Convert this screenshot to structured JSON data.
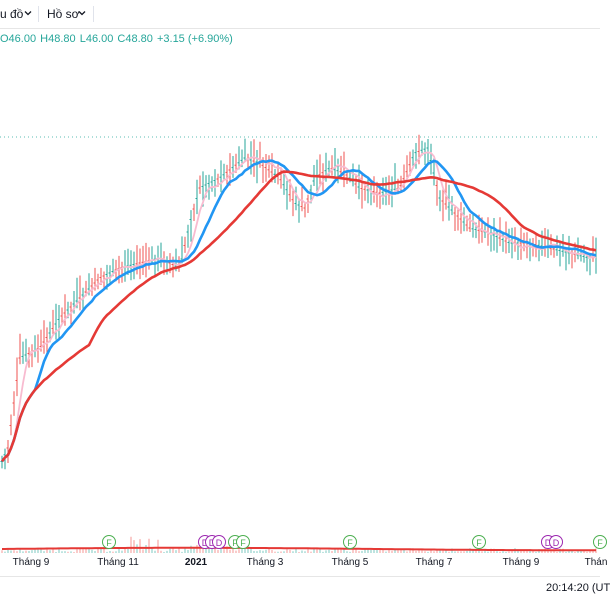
{
  "toolbar": {
    "chart_menu_label": "u đồ",
    "profile_menu_label": "Hồ sơ"
  },
  "ohlc": {
    "open": "O46.00",
    "high": "H48.80",
    "low": "L46.00",
    "close": "C48.80",
    "change": "+3.15 (+6.90%)"
  },
  "x_axis": {
    "labels": [
      {
        "text": "Tháng 9",
        "bold": false
      },
      {
        "text": "Tháng 11",
        "bold": false
      },
      {
        "text": "2021",
        "bold": true
      },
      {
        "text": "Tháng 3",
        "bold": false
      },
      {
        "text": "Tháng 5",
        "bold": false
      },
      {
        "text": "Tháng 7",
        "bold": false
      },
      {
        "text": "Tháng 9",
        "bold": false
      },
      {
        "text": "Thán",
        "bold": false
      }
    ]
  },
  "events": [
    {
      "letter": "F",
      "kind": "financial"
    },
    {
      "letter": "D",
      "kind": "dividend"
    },
    {
      "letter": "D",
      "kind": "dividend"
    },
    {
      "letter": "D",
      "kind": "dividend"
    },
    {
      "letter": "F",
      "kind": "financial"
    },
    {
      "letter": "F",
      "kind": "financial"
    },
    {
      "letter": "F",
      "kind": "financial"
    },
    {
      "letter": "F",
      "kind": "financial"
    },
    {
      "letter": "D",
      "kind": "dividend"
    },
    {
      "letter": "D",
      "kind": "dividend"
    },
    {
      "letter": "F",
      "kind": "financial"
    }
  ],
  "status": {
    "clock": "20:14:20 (UT"
  },
  "colors": {
    "up": "#26a69a",
    "down": "#ef5350",
    "ma_fast": "#f8bbd0",
    "ma_mid": "#2196f3",
    "ma_slow": "#e53935",
    "dashed_line": "#26a69a"
  }
}
